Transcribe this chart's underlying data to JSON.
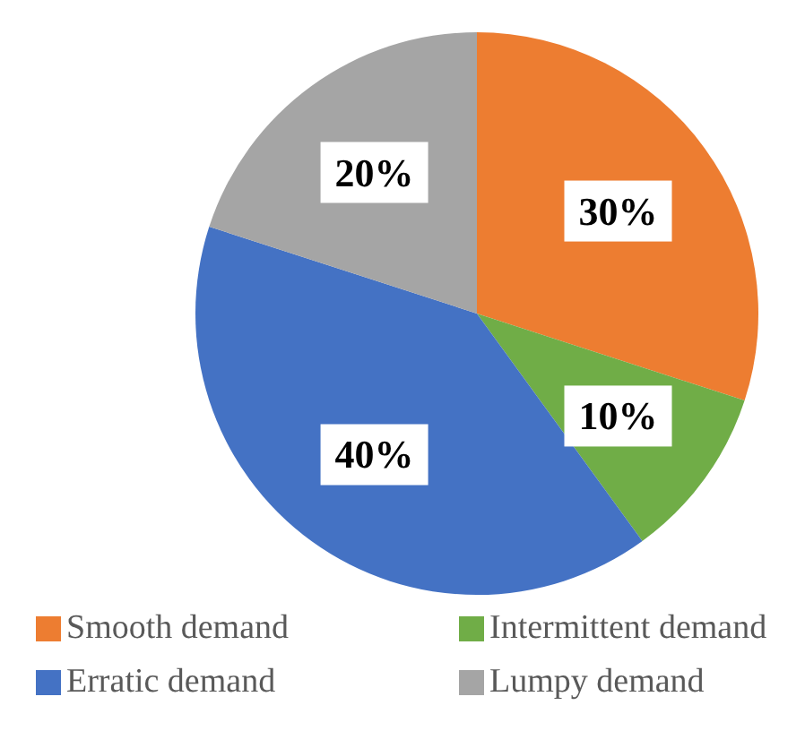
{
  "chart_data": {
    "type": "pie",
    "categories": [
      "Smooth demand",
      "Intermittent demand",
      "Erratic demand",
      "Lumpy demand"
    ],
    "values": [
      30,
      10,
      40,
      20
    ],
    "colors": [
      "#ed7d31",
      "#70ad47",
      "#4472c4",
      "#a5a5a5"
    ],
    "value_labels": [
      "30%",
      "10%",
      "40%",
      "20%"
    ],
    "legend": "bottom"
  }
}
